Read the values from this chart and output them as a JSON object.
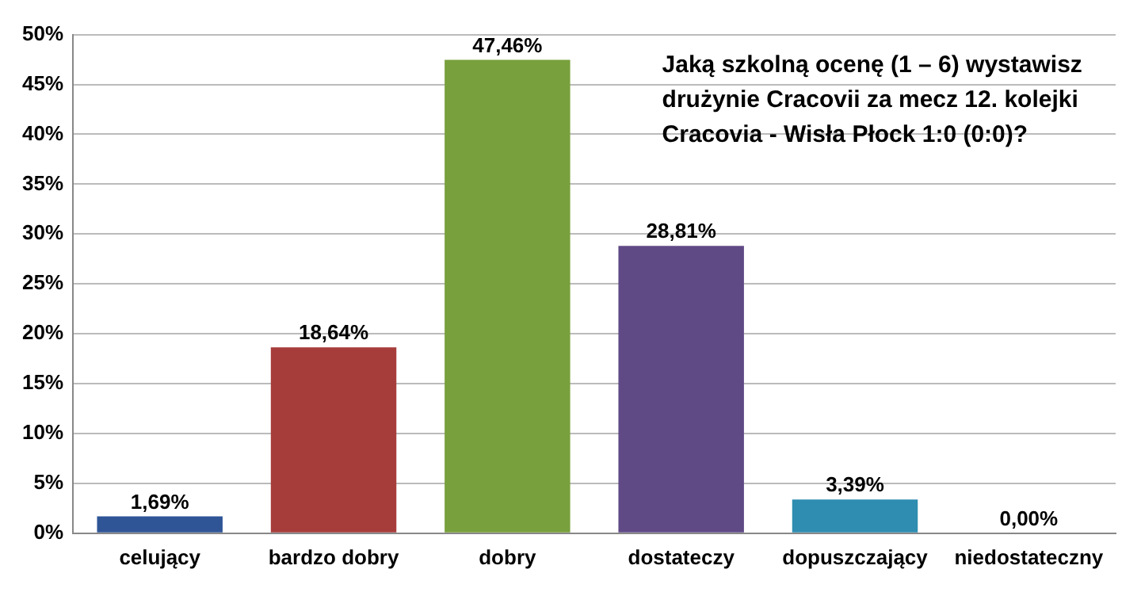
{
  "chart_data": {
    "type": "bar",
    "title": "Jaką szkolną ocenę (1 – 6) wystawisz drużynie Cracovii za mecz 12. kolejki Cracovia - Wisła Płock 1:0 (0:0)?",
    "categories": [
      "celujący",
      "bardzo dobry",
      "dobry",
      "dostateczy",
      "dopuszczający",
      "niedostateczny"
    ],
    "values": [
      1.69,
      18.64,
      47.46,
      28.81,
      3.39,
      0
    ],
    "value_labels": [
      "1,69%",
      "18,64%",
      "47,46%",
      "28,81%",
      "3,39%",
      "0,00%"
    ],
    "colors": [
      "#2f5597",
      "#a63d3b",
      "#78a03c",
      "#604a86",
      "#2e8db0",
      "#e36c0a"
    ],
    "ylim": [
      0,
      50
    ],
    "yticks": [
      {
        "value": 0,
        "label": "0%"
      },
      {
        "value": 5,
        "label": "5%"
      },
      {
        "value": 10,
        "label": "10%"
      },
      {
        "value": 15,
        "label": "15%"
      },
      {
        "value": 20,
        "label": "20%"
      },
      {
        "value": 25,
        "label": "25%"
      },
      {
        "value": 30,
        "label": "30%"
      },
      {
        "value": 35,
        "label": "35%"
      },
      {
        "value": 40,
        "label": "40%"
      },
      {
        "value": 45,
        "label": "45%"
      },
      {
        "value": 50,
        "label": "50%"
      }
    ],
    "grid": "y",
    "legend": false
  }
}
